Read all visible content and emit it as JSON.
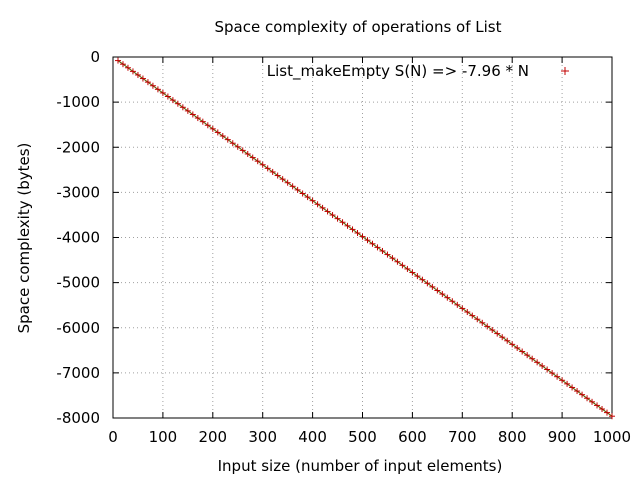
{
  "chart_data": {
    "type": "scatter",
    "title": "Space complexity of operations of List",
    "xlabel": "Input size (number of input elements)",
    "ylabel": "Space complexity (bytes)",
    "xlim": [
      0,
      1000
    ],
    "ylim": [
      -8000,
      0
    ],
    "xticks": [
      0,
      100,
      200,
      300,
      400,
      500,
      600,
      700,
      800,
      900,
      1000
    ],
    "yticks": [
      0,
      -1000,
      -2000,
      -3000,
      -4000,
      -5000,
      -6000,
      -7000,
      -8000
    ],
    "grid": true,
    "legend_position": "top-right",
    "series": [
      {
        "name": "List_makeEmpty S(N) => -7.96 * N",
        "marker": "plus",
        "color": "#c00000",
        "fit_color": "#5a5a00",
        "x_start": 10,
        "x_end": 1000,
        "x_step": 10,
        "slope": -7.96
      }
    ]
  }
}
